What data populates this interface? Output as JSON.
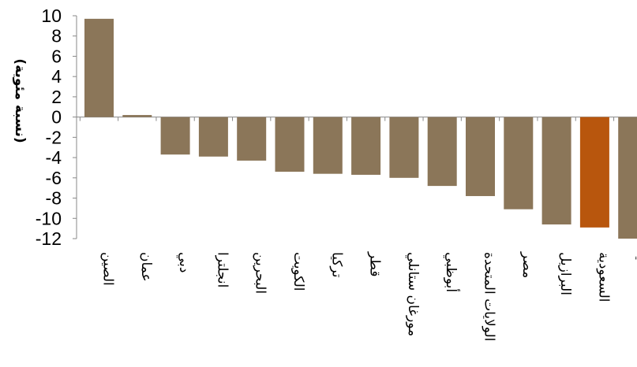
{
  "chart_data": {
    "type": "bar",
    "title": "",
    "xlabel": "",
    "ylabel": "(نسبة مئوية)",
    "ylim": [
      -12,
      10
    ],
    "yticks": [
      10,
      8,
      6,
      4,
      2,
      0,
      -2,
      -4,
      -6,
      -8,
      -10,
      -12
    ],
    "grid": false,
    "legend": "none",
    "categories": [
      "الصين",
      "عمان",
      "دبي",
      "انجلترا",
      "البحرين",
      "الكويت",
      "تركيا",
      "قطر",
      "مورغان ستانلي",
      "أبوظبي",
      "الولايات المتحدة",
      "مصر",
      "البرازيل",
      "السعودية",
      "ألمانيا"
    ],
    "values": [
      9.7,
      0.2,
      -3.7,
      -3.9,
      -4.3,
      -5.4,
      -5.6,
      -5.7,
      -6.0,
      -6.8,
      -7.8,
      -9.1,
      -10.6,
      -10.9,
      -12.0
    ],
    "colors": {
      "default": "#8b7659",
      "highlight": "#b8560d",
      "highlight_category": "السعودية",
      "axis": "#888888"
    }
  }
}
